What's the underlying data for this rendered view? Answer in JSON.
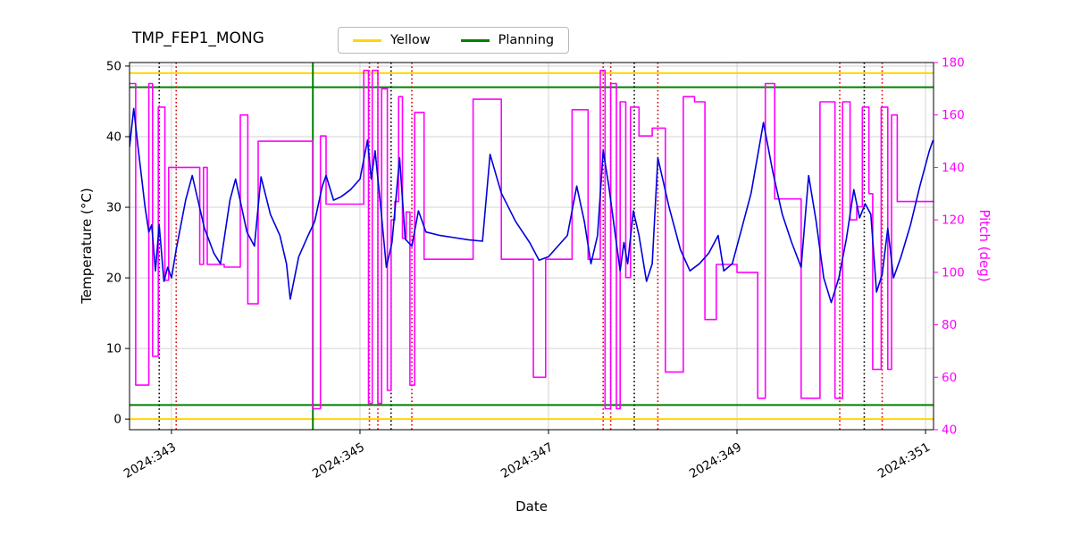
{
  "legend": {
    "items": [
      {
        "label": "Yellow",
        "color": "#ffd700"
      },
      {
        "label": "Planning",
        "color": "#008000"
      }
    ]
  },
  "chart_data": {
    "type": "line",
    "title": "TMP_FEP1_MONG",
    "xlabel": "Date",
    "ylabel_left": "Temperature (°C)",
    "ylabel_right": "Pitch (deg)",
    "grid": true,
    "axes": {
      "xlim": [
        342.555,
        351.085
      ],
      "ylim_left": [
        -1.5,
        50.5
      ],
      "ylim_right": [
        40,
        180
      ],
      "x_ticks": [
        343,
        345,
        347,
        349,
        351
      ],
      "x_tick_labels": [
        "2024:343",
        "2024:345",
        "2024:347",
        "2024:349",
        "2024:351"
      ],
      "y_ticks_left": [
        0,
        10,
        20,
        30,
        40,
        50
      ],
      "y_ticks_right": [
        40,
        60,
        80,
        100,
        120,
        140,
        160,
        180
      ]
    },
    "hlines": [
      {
        "name": "yellow-upper-limit",
        "y": 49,
        "color": "#ffd700",
        "style": "solid"
      },
      {
        "name": "yellow-lower-limit",
        "y": 0,
        "color": "#ffd700",
        "style": "solid"
      },
      {
        "name": "planning-upper-limit",
        "y": 47,
        "color": "#008000",
        "style": "solid"
      },
      {
        "name": "planning-lower-limit",
        "y": 2,
        "color": "#008000",
        "style": "solid"
      }
    ],
    "vlines": [
      {
        "x": 344.5,
        "color": "#008000",
        "style": "solid"
      },
      {
        "x": 342.87,
        "color": "#000000",
        "style": "dotted"
      },
      {
        "x": 345.33,
        "color": "#000000",
        "style": "dotted"
      },
      {
        "x": 347.91,
        "color": "#000000",
        "style": "dotted"
      },
      {
        "x": 350.35,
        "color": "#000000",
        "style": "dotted"
      },
      {
        "x": 343.05,
        "color": "#dd0000",
        "style": "dotted"
      },
      {
        "x": 345.1,
        "color": "#dd0000",
        "style": "dotted"
      },
      {
        "x": 345.19,
        "color": "#dd0000",
        "style": "dotted"
      },
      {
        "x": 345.55,
        "color": "#dd0000",
        "style": "dotted"
      },
      {
        "x": 347.58,
        "color": "#dd0000",
        "style": "dotted"
      },
      {
        "x": 347.66,
        "color": "#dd0000",
        "style": "dotted"
      },
      {
        "x": 348.16,
        "color": "#dd0000",
        "style": "dotted"
      },
      {
        "x": 350.09,
        "color": "#dd0000",
        "style": "dotted"
      },
      {
        "x": 350.54,
        "color": "#dd0000",
        "style": "dotted"
      }
    ],
    "series": [
      {
        "name": "Pitch",
        "axis": "right",
        "color": "#ff00ff",
        "style": "step",
        "points": [
          [
            342.555,
            172
          ],
          [
            342.62,
            57
          ],
          [
            342.76,
            172
          ],
          [
            342.8,
            68
          ],
          [
            342.86,
            163
          ],
          [
            342.93,
            97
          ],
          [
            342.97,
            140
          ],
          [
            343.3,
            103
          ],
          [
            343.34,
            140
          ],
          [
            343.38,
            103
          ],
          [
            343.56,
            102
          ],
          [
            343.73,
            160
          ],
          [
            343.81,
            88
          ],
          [
            343.92,
            150
          ],
          [
            344.5,
            48
          ],
          [
            344.58,
            152
          ],
          [
            344.64,
            126
          ],
          [
            345.04,
            177
          ],
          [
            345.09,
            50
          ],
          [
            345.13,
            177
          ],
          [
            345.19,
            50
          ],
          [
            345.23,
            170
          ],
          [
            345.29,
            55
          ],
          [
            345.33,
            120
          ],
          [
            345.37,
            127
          ],
          [
            345.41,
            167
          ],
          [
            345.45,
            113
          ],
          [
            345.49,
            123
          ],
          [
            345.53,
            57
          ],
          [
            345.58,
            161
          ],
          [
            345.68,
            105
          ],
          [
            346.2,
            166
          ],
          [
            346.5,
            105
          ],
          [
            346.84,
            60
          ],
          [
            346.97,
            105
          ],
          [
            347.25,
            162
          ],
          [
            347.42,
            105
          ],
          [
            347.55,
            177
          ],
          [
            347.6,
            48
          ],
          [
            347.66,
            172
          ],
          [
            347.72,
            48
          ],
          [
            347.76,
            165
          ],
          [
            347.82,
            98
          ],
          [
            347.87,
            163
          ],
          [
            347.96,
            152
          ],
          [
            348.1,
            155
          ],
          [
            348.24,
            62
          ],
          [
            348.43,
            167
          ],
          [
            348.55,
            165
          ],
          [
            348.66,
            82
          ],
          [
            348.78,
            103
          ],
          [
            349.0,
            100
          ],
          [
            349.22,
            52
          ],
          [
            349.3,
            172
          ],
          [
            349.4,
            128
          ],
          [
            349.64,
            128
          ],
          [
            349.68,
            52
          ],
          [
            349.88,
            165
          ],
          [
            350.04,
            52
          ],
          [
            350.12,
            165
          ],
          [
            350.2,
            120
          ],
          [
            350.27,
            125
          ],
          [
            350.33,
            163
          ],
          [
            350.4,
            130
          ],
          [
            350.44,
            63
          ],
          [
            350.53,
            163
          ],
          [
            350.6,
            63
          ],
          [
            350.64,
            160
          ],
          [
            350.7,
            127
          ],
          [
            351.08,
            127
          ]
        ]
      },
      {
        "name": "Temperature",
        "axis": "left",
        "color": "#0000dd",
        "style": "line",
        "points": [
          [
            342.555,
            38.5
          ],
          [
            342.6,
            44
          ],
          [
            342.65,
            38
          ],
          [
            342.72,
            30
          ],
          [
            342.76,
            26.5
          ],
          [
            342.79,
            27.5
          ],
          [
            342.83,
            21
          ],
          [
            342.87,
            27.5
          ],
          [
            342.92,
            19.5
          ],
          [
            342.96,
            21.5
          ],
          [
            343.0,
            20
          ],
          [
            343.05,
            24
          ],
          [
            343.15,
            31
          ],
          [
            343.22,
            34.5
          ],
          [
            343.35,
            27
          ],
          [
            343.45,
            23.5
          ],
          [
            343.52,
            22
          ],
          [
            343.62,
            31
          ],
          [
            343.68,
            34
          ],
          [
            343.8,
            26.5
          ],
          [
            343.88,
            24.5
          ],
          [
            343.95,
            34.3
          ],
          [
            344.05,
            29
          ],
          [
            344.15,
            26
          ],
          [
            344.22,
            22
          ],
          [
            344.26,
            17
          ],
          [
            344.35,
            23
          ],
          [
            344.45,
            26
          ],
          [
            344.52,
            28
          ],
          [
            344.6,
            33
          ],
          [
            344.64,
            34.5
          ],
          [
            344.72,
            31
          ],
          [
            344.8,
            31.5
          ],
          [
            344.9,
            32.5
          ],
          [
            345.0,
            34
          ],
          [
            345.08,
            39.5
          ],
          [
            345.12,
            34
          ],
          [
            345.16,
            38
          ],
          [
            345.22,
            30
          ],
          [
            345.28,
            21.5
          ],
          [
            345.34,
            25
          ],
          [
            345.42,
            37
          ],
          [
            345.48,
            25.5
          ],
          [
            345.55,
            24.5
          ],
          [
            345.62,
            29.5
          ],
          [
            345.7,
            26.5
          ],
          [
            345.85,
            26
          ],
          [
            346.0,
            25.7
          ],
          [
            346.15,
            25.4
          ],
          [
            346.3,
            25.2
          ],
          [
            346.38,
            37.5
          ],
          [
            346.5,
            32
          ],
          [
            346.65,
            28
          ],
          [
            346.8,
            25
          ],
          [
            346.9,
            22.5
          ],
          [
            347.0,
            23
          ],
          [
            347.1,
            24.5
          ],
          [
            347.2,
            26
          ],
          [
            347.3,
            33
          ],
          [
            347.38,
            28
          ],
          [
            347.45,
            22
          ],
          [
            347.52,
            26
          ],
          [
            347.58,
            38
          ],
          [
            347.64,
            33
          ],
          [
            347.7,
            27
          ],
          [
            347.76,
            21
          ],
          [
            347.8,
            25
          ],
          [
            347.84,
            22
          ],
          [
            347.9,
            29.5
          ],
          [
            347.96,
            26
          ],
          [
            348.04,
            19.5
          ],
          [
            348.1,
            22
          ],
          [
            348.16,
            37
          ],
          [
            348.28,
            30
          ],
          [
            348.4,
            24
          ],
          [
            348.5,
            21
          ],
          [
            348.6,
            22
          ],
          [
            348.7,
            23.5
          ],
          [
            348.8,
            26
          ],
          [
            348.86,
            21
          ],
          [
            348.95,
            22
          ],
          [
            349.05,
            27
          ],
          [
            349.15,
            32
          ],
          [
            349.28,
            42
          ],
          [
            349.38,
            35
          ],
          [
            349.48,
            29
          ],
          [
            349.58,
            25
          ],
          [
            349.68,
            21.5
          ],
          [
            349.76,
            34.5
          ],
          [
            349.84,
            28
          ],
          [
            349.92,
            20
          ],
          [
            350.0,
            16.5
          ],
          [
            350.08,
            20
          ],
          [
            350.16,
            25.5
          ],
          [
            350.24,
            32.5
          ],
          [
            350.3,
            28.5
          ],
          [
            350.36,
            30.5
          ],
          [
            350.42,
            29
          ],
          [
            350.48,
            18
          ],
          [
            350.54,
            20.5
          ],
          [
            350.6,
            27
          ],
          [
            350.66,
            20
          ],
          [
            350.74,
            23
          ],
          [
            350.84,
            27.5
          ],
          [
            350.94,
            33
          ],
          [
            351.04,
            38
          ],
          [
            351.08,
            39.5
          ]
        ]
      }
    ]
  }
}
